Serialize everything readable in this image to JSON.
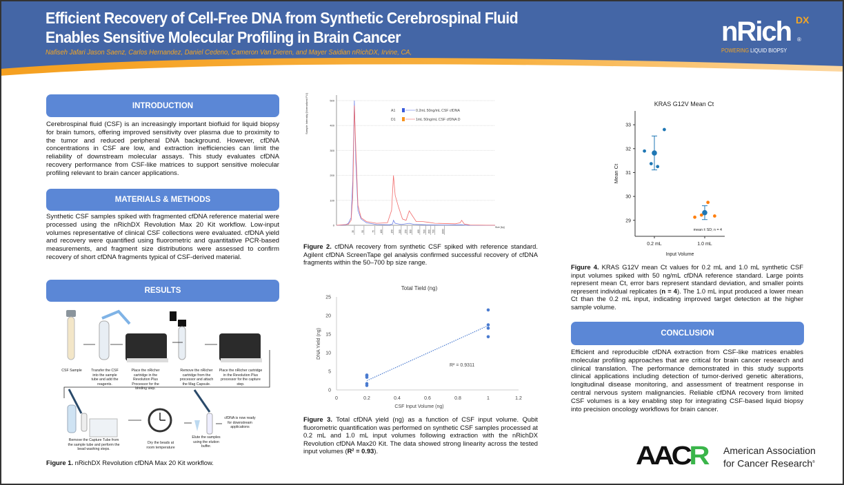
{
  "header": {
    "title_line1": "Efficient Recovery of Cell-Free DNA from Synthetic Cerebrospinal Fluid",
    "title_line2": "Enables Sensitive Molecular Profiling in Brain Cancer",
    "authors": "Nafiseh Jafari Jason Saenz, Carlos Hernandez, Daniel Cedeno, Cameron Van Dieren, and Mayer Saidian nRichDX, Irvine, CA,",
    "logo_word": "nRich",
    "logo_super": "DX",
    "logo_reg": "®",
    "logo_tag_accent": "POWERING",
    "logo_tag_rest": " LIQUID BIOPSY"
  },
  "colors": {
    "header_blue": "#4466a6",
    "accent_orange": "#f5a623",
    "section_blue": "#5b87d6"
  },
  "introduction": {
    "heading": "INTRODUCTION",
    "text": "Cerebrospinal fluid (CSF) is an increasingly important biofluid for liquid biopsy for brain tumors, offering improved sensitivity over plasma due to proximity to the tumor and reduced peripheral DNA background. However, cfDNA concentrations in CSF are low, and extraction inefficiencies can limit the reliability of downstream molecular assays. This study evaluates cfDNA recovery performance from CSF-like matrices to support sensitive molecular profiling relevant to brain cancer applications."
  },
  "methods": {
    "heading": "MATERIALS & METHODS",
    "text": "Synthetic CSF samples spiked with fragmented cfDNA reference material were processed using the nRichDX Revolution Max 20 Kit workflow. Low-input volumes representative of clinical CSF collections were evaluated. cfDNA yield and recovery were quantified using fluorometric and quantitative PCR-based measurements, and fragment size distributions were assessed to confirm recovery of short cfDNA fragments typical of CSF-derived material."
  },
  "results": {
    "heading": "RESULTS"
  },
  "workflow": {
    "steps": [
      "CSF Sample",
      "Transfer the CSF into the sample tube and add the reagents.",
      "Place the nRicher cartridge in the Revolution Plus Processor for the binding step.",
      "Remove the nRicher cartridge from the processor and attach the Mag Capsule.",
      "Place the nRicher cartridge in the Revolution Plus processor for the capture step.",
      "Remove the Capture Tube from the sample tube and perform the bead washing steps.",
      "Dry the beads at room temperature",
      "Elute the samples using the elution buffer.",
      "cfDNA is now ready for downstream applications"
    ]
  },
  "figure1": {
    "label": "Figure 1.",
    "caption": " nRichDX Revolution cfDNA Max 20 Kit workflow."
  },
  "figure2": {
    "label": "Figure 2.",
    "caption": " cfDNA recovery from synthetic CSF spiked with reference standard. Agilent cfDNA ScreenTape gel analysis confirmed successful recovery of cfDNA fragments within the 50–700 bp size range."
  },
  "figure3": {
    "label": "Figure 3.",
    "caption": " Total cfDNA yield (ng) as a function of CSF input volume. Qubit fluorometric quantification was performed on synthetic CSF samples processed at 0.2 mL and 1.0 mL input volumes following extraction with the nRichDX Revolution cfDNA Max20 Kit. The data showed strong linearity across the tested input volumes (",
    "caption_bold": "R² = 0.93",
    "caption_end": ")."
  },
  "figure4": {
    "label": "Figure 4.",
    "caption": " KRAS G12V mean Ct values for 0.2 mL and 1.0 mL synthetic CSF input volumes spiked with 50 ng/mL cfDNA reference standard. Large points represent mean Ct, error bars represent standard deviation, and smaller points represent individual replicates (",
    "caption_bold": "n = 4",
    "caption_end": "). The 1.0 mL input produced a lower mean Ct than the 0.2 mL input, indicating improved target detection at the higher sample volume."
  },
  "conclusion": {
    "heading": "CONCLUSION",
    "text": "Efficient and reproducible cfDNA extraction from CSF-like matrices enables molecular profiling approaches that are critical for brain cancer research and clinical translation. The performance demonstrated in this study supports clinical applications including detection of tumor-derived genetic alterations, longitudinal disease monitoring, and assessment of treatment response in central nervous system malignancies. Reliable cfDNA recovery from limited CSF volumes is a key enabling step for integrating CSF-based liquid biopsy into precision oncology workflows for brain cancer."
  },
  "aacr": {
    "logo_text_main": "AAC",
    "logo_text_green": "R",
    "line1": "American Association",
    "line2": "for Cancer Research",
    "reg": "®"
  },
  "chart_data": [
    {
      "id": "electropherogram",
      "type": "line",
      "ylabel": "Sample Intensity [Normalized FU]",
      "xlabel": "Size [bp]",
      "x_tick_labels": [
        "35",
        "50",
        "75",
        "100",
        "150",
        "200",
        "250",
        "300",
        "400",
        "500",
        "600",
        "700",
        "1000"
      ],
      "y_ticks": [
        0,
        100,
        200,
        300,
        400,
        500
      ],
      "ylim": [
        0,
        500
      ],
      "xlim": [
        18,
        6600
      ],
      "xscale": "log",
      "grid": true,
      "legend_position": "top-right",
      "series": [
        {
          "name": "A1",
          "label": "0.2mL 50ng/mL CSF cfDNA",
          "color": "#6b7fe8",
          "legend_color": "#3b5bdb",
          "points": [
            [
              18,
              0
            ],
            [
              25,
              1
            ],
            [
              28,
              8
            ],
            [
              31,
              30
            ],
            [
              33,
              180
            ],
            [
              35,
              500
            ],
            [
              37,
              250
            ],
            [
              40,
              60
            ],
            [
              45,
              25
            ],
            [
              55,
              10
            ],
            [
              80,
              3
            ],
            [
              130,
              2
            ],
            [
              145,
              5
            ],
            [
              150,
              20
            ],
            [
              160,
              8
            ],
            [
              200,
              3
            ],
            [
              270,
              8
            ],
            [
              320,
              4
            ],
            [
              500,
              2
            ],
            [
              1000,
              1
            ],
            [
              1900,
              2
            ],
            [
              2300,
              0
            ],
            [
              6600,
              0
            ]
          ]
        },
        {
          "name": "D1",
          "label": "1mL 50ng/mL CSF cfDNA D",
          "color": "#f06a6a",
          "legend_color": "#f7931e",
          "points": [
            [
              18,
              0
            ],
            [
              28,
              4
            ],
            [
              31,
              20
            ],
            [
              33,
              120
            ],
            [
              35,
              480
            ],
            [
              37,
              300
            ],
            [
              40,
              80
            ],
            [
              45,
              30
            ],
            [
              55,
              15
            ],
            [
              80,
              8
            ],
            [
              120,
              10
            ],
            [
              140,
              60
            ],
            [
              150,
              200
            ],
            [
              160,
              120
            ],
            [
              180,
              75
            ],
            [
              210,
              25
            ],
            [
              240,
              20
            ],
            [
              270,
              58
            ],
            [
              300,
              40
            ],
            [
              350,
              15
            ],
            [
              450,
              15
            ],
            [
              550,
              12
            ],
            [
              700,
              8
            ],
            [
              1500,
              6
            ],
            [
              1800,
              10
            ],
            [
              1900,
              20
            ],
            [
              2100,
              5
            ],
            [
              2600,
              1
            ],
            [
              6600,
              0
            ]
          ]
        }
      ]
    },
    {
      "id": "total-yield",
      "type": "scatter",
      "title": "Total Tield  (ng)",
      "xlabel": "CSF Input Volume  (ng)",
      "ylabel": "DNA Yield (ng)",
      "xlim": [
        0,
        1.2
      ],
      "ylim": [
        0,
        25
      ],
      "x_ticks": [
        0,
        0.2,
        0.4,
        0.6,
        0.8,
        1,
        1.2
      ],
      "y_ticks": [
        0,
        5,
        10,
        15,
        20,
        25
      ],
      "annotation": "R² = 0.9311",
      "color": "#4a7bd0",
      "points": [
        [
          0.2,
          1.2
        ],
        [
          0.2,
          1.7
        ],
        [
          0.2,
          3.4
        ],
        [
          0.2,
          3.8
        ],
        [
          0.2,
          4.0
        ],
        [
          1,
          21.5
        ],
        [
          1,
          17.5
        ],
        [
          1,
          16.6
        ],
        [
          1,
          14.3
        ]
      ],
      "trendline": [
        [
          0.2,
          2.5
        ],
        [
          1,
          17.3
        ]
      ]
    },
    {
      "id": "kras-ct",
      "type": "scatter",
      "title": "KRAS G12V Mean Ct",
      "xlabel": "Input Volume",
      "ylabel": "Mean Ct",
      "categories": [
        "0.2 mL",
        "1.0 mL"
      ],
      "ylim": [
        28.33,
        33.58
      ],
      "y_ticks": [
        29,
        30,
        31,
        32,
        33
      ],
      "annotation": "mean ± SD; n = 4",
      "series": [
        {
          "category": "0.2 mL",
          "color": "#1f77b4",
          "mean": 31.82,
          "sd": 0.71,
          "replicates": [
            31.9,
            31.37,
            31.25,
            32.8
          ],
          "jitter": [
            -0.4,
            -0.13,
            0.13,
            0.4
          ]
        },
        {
          "category": "1.0 mL",
          "color": "#ff7f0e",
          "mean_color": "#1f77b4",
          "mean": 29.32,
          "sd": 0.29,
          "replicates": [
            29.13,
            29.22,
            29.75,
            29.18
          ],
          "jitter": [
            -0.4,
            -0.13,
            0.13,
            0.4
          ]
        }
      ]
    }
  ]
}
